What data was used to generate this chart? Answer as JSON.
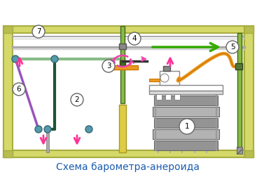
{
  "title": "Схема барометра-анероида",
  "title_color": "#1a5cb0",
  "bg_color": "#ffffff",
  "frame_color": "#d4d96a",
  "frame_dark": "#a8ad40",
  "frame_inner": "#e8ec90"
}
